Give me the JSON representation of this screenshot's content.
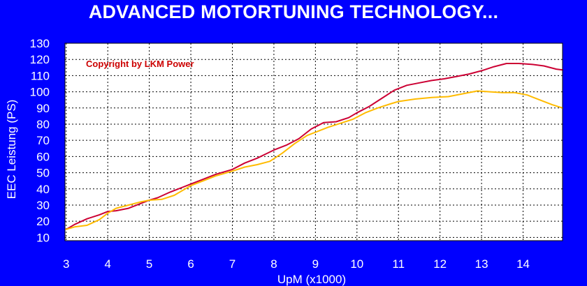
{
  "chart_data": {
    "type": "line",
    "title": "ADVANCED MOTORTUNING TECHNOLOGY...",
    "xlabel": "UpM (x1000)",
    "ylabel": "EEC Leistung (PS)",
    "annotation": "Copyright by LKM Power",
    "xlim": [
      2.97,
      14.95
    ],
    "ylim": [
      8,
      130
    ],
    "x_ticks": [
      3,
      4,
      5,
      6,
      7,
      8,
      9,
      10,
      11,
      12,
      13,
      14
    ],
    "y_ticks": [
      10,
      20,
      30,
      40,
      50,
      60,
      70,
      80,
      90,
      100,
      110,
      120,
      130
    ],
    "grid": true,
    "background_color": "#FFFFFF",
    "page_color": "#0000FF",
    "series": [
      {
        "color": "#CC0033",
        "x": [
          3.0,
          3.2,
          3.5,
          3.8,
          4.0,
          4.2,
          4.5,
          4.8,
          5.0,
          5.2,
          5.5,
          5.8,
          6.0,
          6.3,
          6.6,
          7.0,
          7.3,
          7.6,
          8.0,
          8.3,
          8.6,
          8.9,
          9.2,
          9.5,
          9.8,
          10.0,
          10.3,
          10.6,
          10.9,
          11.2,
          11.5,
          11.8,
          12.1,
          12.4,
          12.7,
          13.0,
          13.3,
          13.6,
          13.9,
          14.2,
          14.5,
          14.8,
          14.95
        ],
        "y": [
          15,
          18,
          21.5,
          24,
          26,
          26.5,
          28,
          31,
          33,
          34.5,
          38,
          41,
          43,
          46,
          49,
          52,
          56,
          59,
          64,
          67,
          71,
          77,
          81,
          81.5,
          84,
          87,
          91,
          96,
          101,
          104,
          105.5,
          107,
          108,
          109.5,
          111,
          113,
          115.5,
          117.5,
          117.5,
          117,
          116,
          114,
          113.5
        ]
      },
      {
        "color": "#FFBB00",
        "x": [
          3.0,
          3.2,
          3.5,
          3.8,
          4.0,
          4.2,
          4.5,
          4.8,
          5.0,
          5.3,
          5.6,
          6.0,
          6.3,
          6.6,
          7.0,
          7.3,
          7.6,
          7.9,
          8.2,
          8.5,
          8.8,
          9.0,
          9.3,
          9.6,
          9.9,
          10.2,
          10.5,
          10.8,
          11.0,
          11.4,
          11.8,
          12.2,
          12.6,
          12.9,
          13.2,
          13.5,
          13.8,
          14.1,
          14.4,
          14.7,
          14.95
        ],
        "y": [
          15,
          16.5,
          17.5,
          21,
          25,
          28,
          30,
          32,
          33,
          33.5,
          36,
          42,
          45,
          48,
          51,
          53.5,
          55,
          57,
          62,
          68,
          73,
          75,
          78,
          80.5,
          83,
          87,
          90,
          92.5,
          94,
          95.5,
          96.5,
          97,
          99,
          100.5,
          100,
          99.5,
          99.5,
          98,
          95,
          92,
          90
        ]
      }
    ]
  }
}
